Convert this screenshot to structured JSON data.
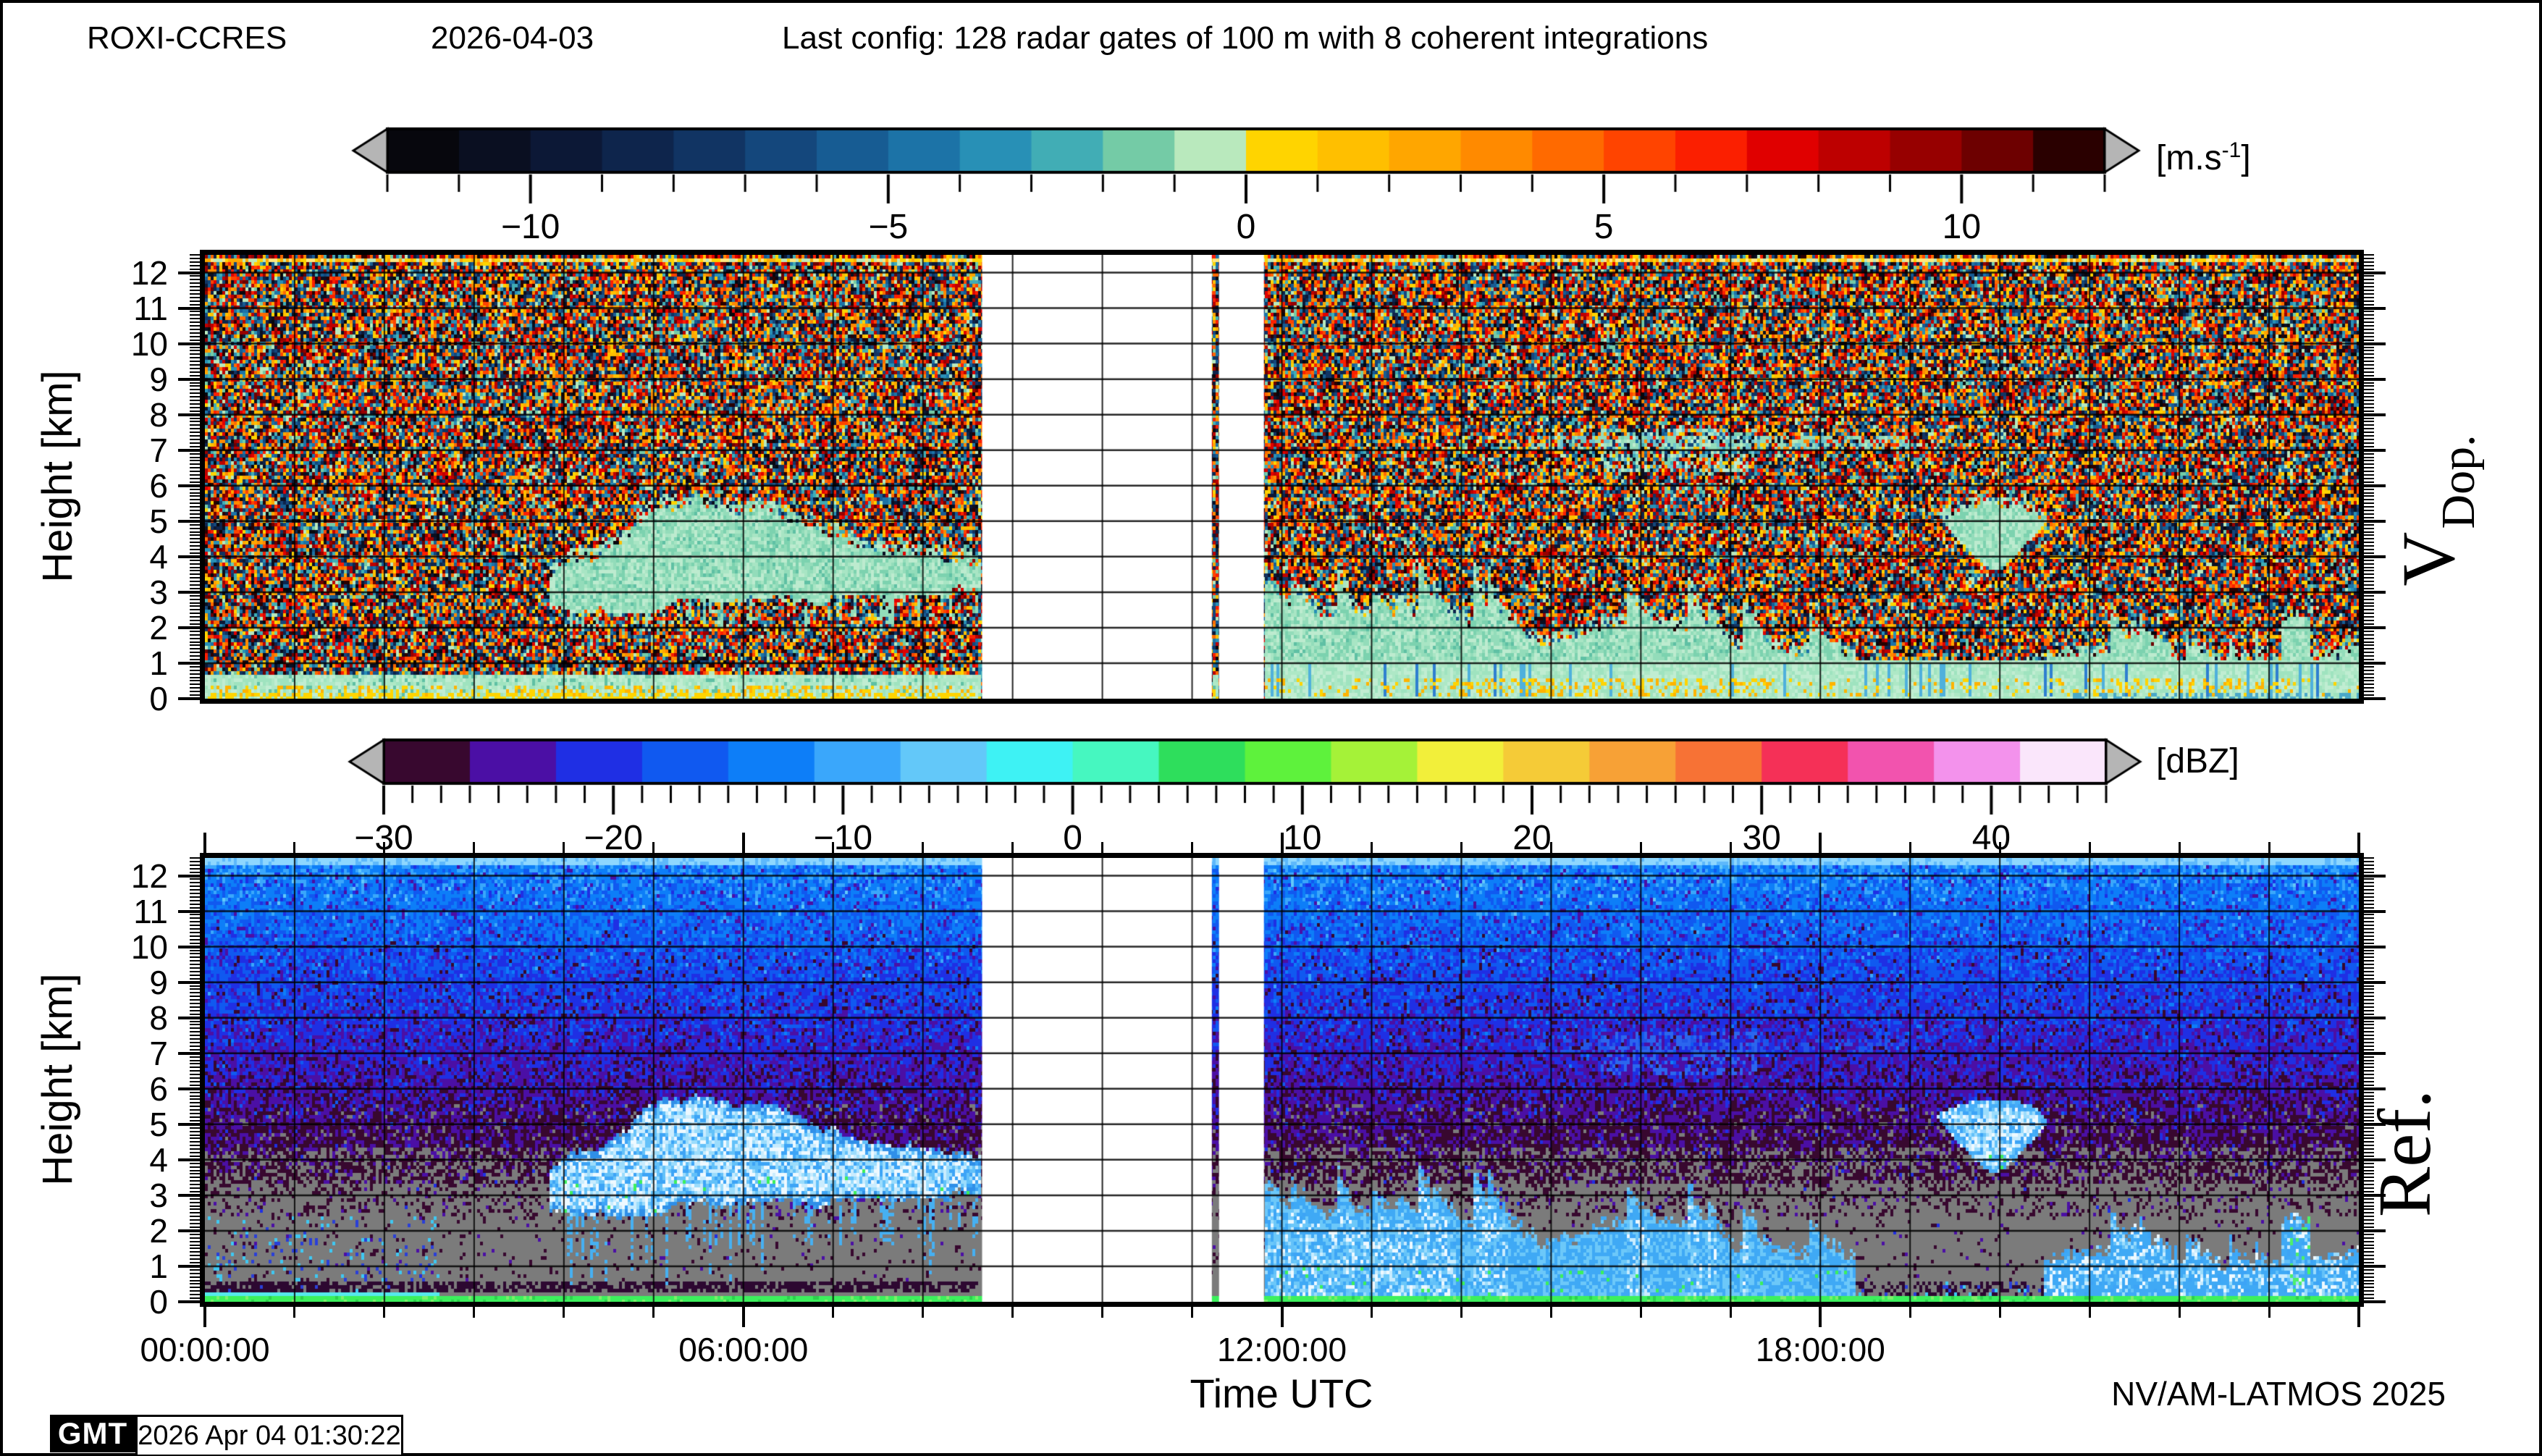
{
  "header": {
    "station": "ROXI-CCRES",
    "date": "2026-04-03",
    "config": "Last config: 128 radar gates of 100 m with 8 coherent integrations"
  },
  "colorbar_velocity": {
    "unit_open": "[m.s",
    "unit_sup": "-1",
    "unit_close": "]",
    "range": [
      -12,
      12
    ],
    "major_ticks": [
      -10,
      -5,
      0,
      5,
      10
    ],
    "minor_step": 1,
    "arrow_color": "#b5b5b5",
    "blocks": [
      "#07070d",
      "#0a0f21",
      "#0c1836",
      "#0e254c",
      "#113463",
      "#14477c",
      "#175c93",
      "#1c73a7",
      "#2890b6",
      "#41adb5",
      "#74cba6",
      "#b9e9bd",
      "#ffd400",
      "#ffbf00",
      "#ffa600",
      "#ff8a00",
      "#ff6a00",
      "#ff4400",
      "#fb1f00",
      "#e00000",
      "#bd0000",
      "#970000",
      "#6d0000",
      "#2a0000"
    ]
  },
  "colorbar_dbz": {
    "unit": "[dBZ]",
    "range": [
      -30,
      45
    ],
    "major_ticks": [
      -30,
      -20,
      -10,
      0,
      10,
      20,
      30,
      40
    ],
    "minor_step": 1.25,
    "arrow_color": "#b5b5b5",
    "blocks": [
      "#38082f",
      "#4b0fa5",
      "#1f2fe4",
      "#1059f0",
      "#0d7ef8",
      "#3aa7fb",
      "#63c8f9",
      "#3ef2f4",
      "#46f7c0",
      "#2ede5c",
      "#5ef23c",
      "#a5f238",
      "#f2ef3a",
      "#f5cb37",
      "#f7a136",
      "#f77235",
      "#f53057",
      "#f253ae",
      "#f392ec",
      "#fae6fb"
    ]
  },
  "yaxis": {
    "label": "Height [km]",
    "major_ticks": [
      0,
      1,
      2,
      3,
      4,
      5,
      6,
      7,
      8,
      9,
      10,
      11,
      12
    ],
    "minor_step_km": 0.1,
    "range_km": [
      0,
      12.5
    ]
  },
  "xaxis": {
    "label": "Time UTC",
    "major_ticks": [
      {
        "hour": 0,
        "label": "00:00:00"
      },
      {
        "hour": 6,
        "label": "06:00:00"
      },
      {
        "hour": 12,
        "label": "12:00:00"
      },
      {
        "hour": 18,
        "label": "18:00:00"
      }
    ],
    "minor_step_hours": 1,
    "range_hours": [
      0,
      24
    ]
  },
  "panels": {
    "top": {
      "side_label_main": "V",
      "side_label_sub": "Dop."
    },
    "bottom": {
      "side_label": "Ref."
    }
  },
  "footer": {
    "credit": "NV/AM-LATMOS 2025",
    "gmt_logo": "GMT",
    "timestamp": "2026 Apr 04 01:30:22"
  },
  "chart_data": {
    "type": "heatmap",
    "title": "ROXI-CCRES 95 GHz cloud radar quicklook, 2026-04-03",
    "x": {
      "label": "Time UTC",
      "range_hours": [
        0,
        24
      ],
      "major_tick_hours": [
        0,
        6,
        12,
        18
      ],
      "minor_tick_hours": 1
    },
    "y": {
      "label": "Height [km]",
      "range_km": [
        0,
        12.5
      ],
      "major_tick_km": 1,
      "minor_tick_km": 0.1
    },
    "grid": {
      "x_interval_hours": 1,
      "y_interval_km": 1,
      "color": "#000000"
    },
    "panels": [
      {
        "id": "doppler_velocity",
        "side_label": "V Dop.",
        "colorbar_range": [
          -12,
          12
        ],
        "colorbar_unit": "m.s-1",
        "background": "uniform random Doppler-velocity noise spanning full -12..12 m/s colormap"
      },
      {
        "id": "reflectivity",
        "side_label": "Ref.",
        "colorbar_range": [
          -30,
          45
        ],
        "colorbar_unit": "dBZ",
        "background": "blue noise brightening with height above ~5 km; solid grey below ~5 km with sparse dark-purple speckles"
      }
    ],
    "features": {
      "data_gap_hours": [
        [
          8.66,
          11.22
        ],
        [
          11.3,
          11.8
        ]
      ],
      "isolated_profile_hours": [
        11.22,
        11.3
      ],
      "cloud_low_mid": {
        "t": [
          3.85,
          8.66
        ],
        "base_km": 2.45,
        "top_km_max": 5.5
      },
      "boundary_layer_right": {
        "t": [
          11.8,
          18.4
        ],
        "top_km_min": 1.2,
        "top_km_max": 3.9
      },
      "boundary_layer_late": {
        "t": [
          20.5,
          24
        ],
        "top_km_min": 0.9,
        "top_km_max": 2.5
      },
      "midlevel_blob": {
        "t": [
          19.2,
          20.68
        ],
        "base_km": 3.58,
        "top_km": 5.72
      },
      "thin_layer_7km": {
        "t": [
          14.75,
          19.0
        ],
        "km": [
          6.95,
          7.45
        ],
        "coverage": 0.45
      },
      "patch_7km": {
        "t": [
          15.55,
          17.3
        ],
        "km": [
          6.4,
          7.62
        ],
        "coverage": 0.38
      },
      "surface_layer_km": [
        0,
        0.62
      ],
      "top_edge_band_km": [
        12.28,
        12.44
      ]
    },
    "palettes": {
      "grey_background": "#7b7b7b",
      "cloud_green": [
        "#bdebcf",
        "#a8e5c4",
        "#93dcba",
        "#7cd2af"
      ],
      "cloud_green_teal": "#5fc0a4",
      "cloud_blue": [
        "#eef9ff",
        "#c9ecfe",
        "#9bdcfc",
        "#63c1f9",
        "#3da4f6"
      ],
      "cloud_blue_edge": "#2f8fe8",
      "fall_streak_blue": "#46b0f2",
      "surface_green": [
        "#aee8c6",
        "#9fe3bf",
        "#c0edd2"
      ],
      "surface_yellow": [
        "#ffd400",
        "#ffb300"
      ],
      "ground_green_line": "#3cf05c",
      "ground_cyan_line": "#55e9ec",
      "maroon_band": "#2d0831",
      "ref_top_line": "#8ed7fe",
      "vdop_top_band": [
        "#ffd400",
        "#ffe680",
        "#bfe9b8",
        "#ffaa00"
      ]
    }
  }
}
